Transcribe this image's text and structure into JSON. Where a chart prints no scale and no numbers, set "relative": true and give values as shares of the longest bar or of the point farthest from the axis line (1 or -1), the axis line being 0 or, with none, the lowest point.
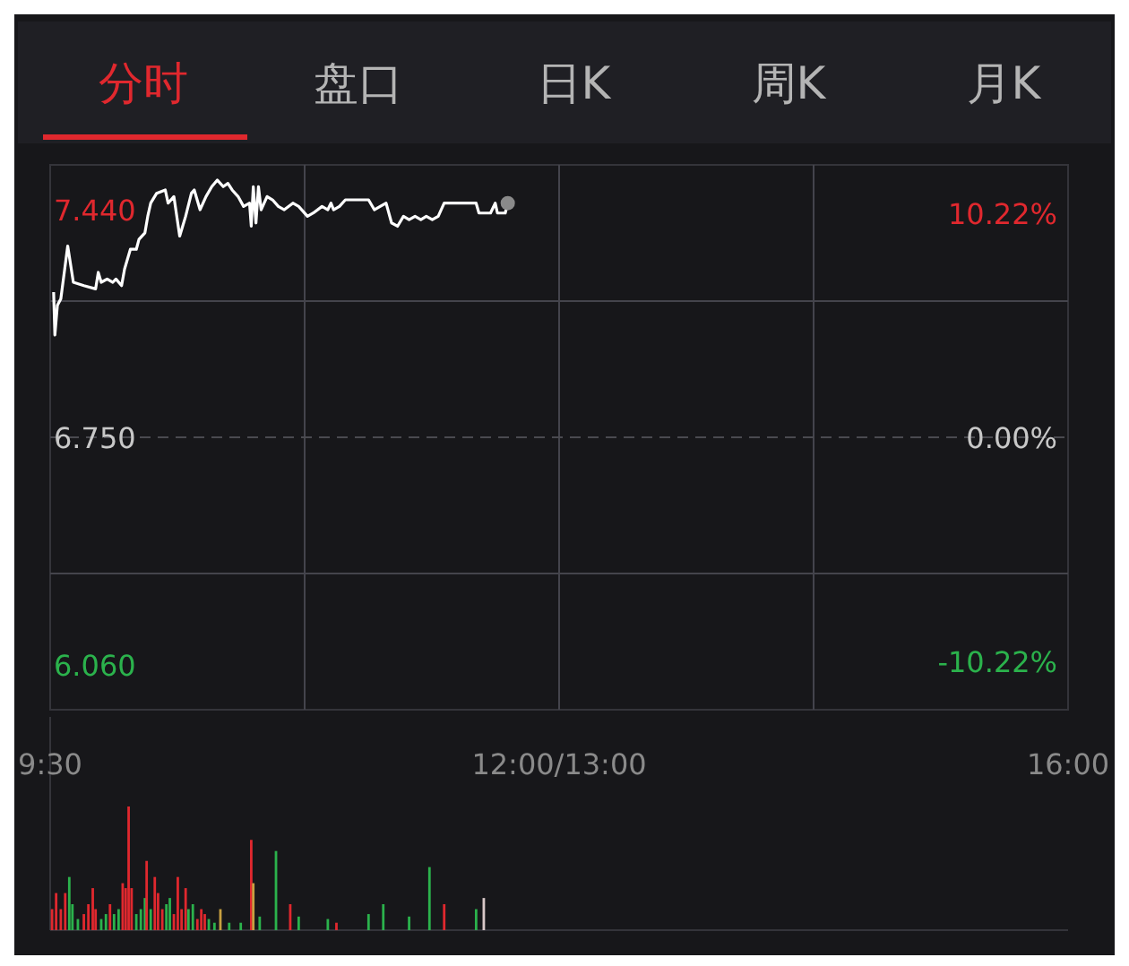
{
  "chart_data": [
    {
      "type": "line",
      "annotations": [
        "分时",
        "盘口",
        "日K",
        "周K",
        "月K"
      ],
      "xlim": [
        9.5,
        16
      ],
      "xticks": [
        {
          "value": 11.125,
          "label": null
        },
        {
          "value": 12.75,
          "label": null
        },
        {
          "value": 14.375,
          "label": null
        }
      ],
      "tick_labels": "y",
      "ylim": [
        5.924,
        7.576
      ],
      "yticks": [
        {
          "value": 7.44,
          "label": "7.440"
        },
        {
          "value": 7.163,
          "label": null
        },
        {
          "value": 6.75,
          "label": "6.750"
        },
        {
          "value": 6.337,
          "label": null
        },
        {
          "value": 6.06,
          "label": "6.060"
        }
      ],
      "y2lim": [
        -12.43,
        12.43
      ],
      "y2ticks": [
        {
          "value": 10.22,
          "label": "10.22%"
        },
        {
          "value": 0,
          "label": "0.00%"
        },
        {
          "value": -10.22,
          "label": "-10.22%"
        }
      ],
      "grid": true,
      "ref_lines": [
        {
          "axis": "y",
          "value": 6.75,
          "label": null,
          "color": "#4a4a50",
          "line_style": "dashed"
        }
      ],
      "series": [
        {
          "color": "#ffffff",
          "x": [
            9.522,
            9.53,
            9.546,
            9.568,
            9.612,
            9.648,
            9.715,
            9.79,
            9.807,
            9.826,
            9.864,
            9.9,
            9.92,
            9.956,
            9.975,
            10.012,
            10.05,
            10.067,
            10.105,
            10.123,
            10.142,
            10.18,
            10.235,
            10.253,
            10.29,
            10.327,
            10.365,
            10.402,
            10.42,
            10.457,
            10.495,
            10.532,
            10.567,
            10.605,
            10.635,
            10.662,
            10.7,
            10.735,
            10.773,
            10.784,
            10.797,
            10.814,
            10.83,
            10.847,
            10.885,
            10.92,
            10.957,
            10.995,
            11.05,
            11.087,
            11.143,
            11.18,
            11.236,
            11.273,
            11.293,
            11.31,
            11.347,
            11.385,
            11.458,
            11.533,
            11.57,
            11.607,
            11.645,
            11.68,
            11.718,
            11.756,
            11.792,
            11.83,
            11.867,
            11.902,
            11.94,
            11.978,
            12.016,
            12.052,
            12.125,
            12.22,
            12.238,
            12.276,
            12.312,
            12.342,
            12.356,
            12.406,
            12.422
          ],
          "values": [
            7.19,
            7.06,
            7.15,
            7.17,
            7.33,
            7.22,
            7.21,
            7.2,
            7.25,
            7.22,
            7.23,
            7.22,
            7.23,
            7.21,
            7.26,
            7.32,
            7.32,
            7.35,
            7.37,
            7.42,
            7.46,
            7.49,
            7.5,
            7.46,
            7.48,
            7.36,
            7.42,
            7.49,
            7.5,
            7.44,
            7.48,
            7.51,
            7.53,
            7.51,
            7.52,
            7.5,
            7.48,
            7.45,
            7.46,
            7.39,
            7.51,
            7.4,
            7.51,
            7.44,
            7.48,
            7.47,
            7.45,
            7.44,
            7.46,
            7.45,
            7.42,
            7.43,
            7.45,
            7.44,
            7.46,
            7.44,
            7.45,
            7.47,
            7.47,
            7.47,
            7.44,
            7.45,
            7.46,
            7.4,
            7.39,
            7.42,
            7.41,
            7.42,
            7.41,
            7.42,
            7.41,
            7.42,
            7.46,
            7.46,
            7.46,
            7.46,
            7.43,
            7.43,
            7.43,
            7.46,
            7.43,
            7.43,
            7.46
          ]
        }
      ]
    },
    {
      "type": "bar",
      "relative": true,
      "xlim": [
        9.5,
        16
      ],
      "tick_labels": "x",
      "xticks": [
        {
          "value": 9.5,
          "label": "9:30"
        },
        {
          "value": 12.75,
          "label": "12:00/13:00"
        },
        {
          "value": 16,
          "label": "16:00"
        }
      ],
      "x": [
        9.512,
        9.538,
        9.568,
        9.596,
        9.622,
        9.642,
        9.677,
        9.715,
        9.744,
        9.772,
        9.79,
        9.826,
        9.856,
        9.882,
        9.908,
        9.937,
        9.963,
        9.982,
        10.001,
        10.02,
        10.05,
        10.079,
        10.105,
        10.116,
        10.142,
        10.168,
        10.189,
        10.216,
        10.242,
        10.264,
        10.29,
        10.315,
        10.339,
        10.365,
        10.383,
        10.411,
        10.44,
        10.465,
        10.487,
        10.513,
        10.549,
        10.587,
        10.643,
        10.717,
        10.784,
        10.797,
        10.838,
        10.942,
        11.033,
        11.087,
        11.273,
        11.328,
        11.533,
        11.627,
        11.792,
        11.922,
        12.016,
        12.22,
        12.269
      ],
      "values": [
        0.17,
        0.3,
        0.17,
        0.3,
        0.43,
        0.21,
        0.09,
        0.13,
        0.21,
        0.34,
        0.17,
        0.09,
        0.13,
        0.21,
        0.13,
        0.17,
        0.38,
        0.34,
        1,
        0.34,
        0.13,
        0.17,
        0.26,
        0.56,
        0.17,
        0.43,
        0.3,
        0.17,
        0.21,
        0.26,
        0.13,
        0.43,
        0.17,
        0.34,
        0.17,
        0.21,
        0.09,
        0.17,
        0.13,
        0.09,
        0.06,
        0.17,
        0.06,
        0.06,
        0.73,
        0.38,
        0.11,
        0.64,
        0.21,
        0.11,
        0.09,
        0.06,
        0.13,
        0.21,
        0.11,
        0.51,
        0.21,
        0.17,
        0.26
      ],
      "colors": [
        "#e0282e",
        "#e0282e",
        "#e0282e",
        "#e0282e",
        "#2bb24c",
        "#2bb24c",
        "#2bb24c",
        "#e0282e",
        "#e0282e",
        "#e0282e",
        "#e0282e",
        "#2bb24c",
        "#2bb24c",
        "#e0282e",
        "#2bb24c",
        "#2bb24c",
        "#e0282e",
        "#e0282e",
        "#e0282e",
        "#e0282e",
        "#2bb24c",
        "#2bb24c",
        "#2bb24c",
        "#e0282e",
        "#2bb24c",
        "#e0282e",
        "#e0282e",
        "#e0282e",
        "#2bb24c",
        "#2bb24c",
        "#e0282e",
        "#e0282e",
        "#e0282e",
        "#e0282e",
        "#2bb24c",
        "#2bb24c",
        "#e0282e",
        "#e0282e",
        "#e0282e",
        "#2bb24c",
        "#2bb24c",
        "#c8a040",
        "#2bb24c",
        "#2bb24c",
        "#e0282e",
        "#c8a040",
        "#2bb24c",
        "#2bb24c",
        "#e0282e",
        "#2bb24c",
        "#2bb24c",
        "#e0282e",
        "#2bb24c",
        "#2bb24c",
        "#2bb24c",
        "#2bb24c",
        "#e0282e",
        "#2bb24c",
        "#d8c8c8"
      ]
    }
  ]
}
